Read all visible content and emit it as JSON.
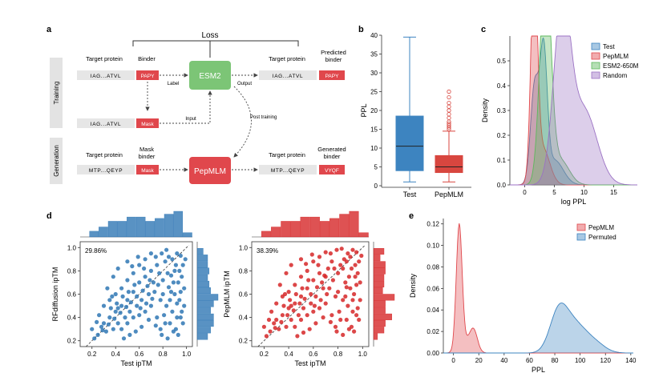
{
  "panel_labels": {
    "a": "a",
    "b": "b",
    "c": "c",
    "d": "d",
    "e": "e"
  },
  "panel_a": {
    "loss_label": "Loss",
    "stage_training": "Training",
    "stage_generation": "Generation",
    "target_protein_label": "Target protein",
    "binder_label": "Binder",
    "predicted_binder_label": "Predicted\nbinder",
    "mask_binder_label": "Mask\nbinder",
    "generated_binder_label": "Generated\nbinder",
    "seq_iag": "IAG...ATVL",
    "seq_mtp": "MTP...QEYP",
    "binder_seq": "PAPY",
    "mask_text": "Mask",
    "generated_seq": "VYQF",
    "model_esm2": "ESM2",
    "model_pepmlm": "PepMLM",
    "arrow_label": "Label",
    "arrow_output": "Output",
    "arrow_input": "Input",
    "arrow_post_training": "Post training",
    "colors": {
      "esm2": "#7cc576",
      "pepmlm": "#e0474c",
      "seq_bg": "#e6e6e6",
      "binder": "#e0474c",
      "stage_bg": "#e3e3e3"
    }
  },
  "chart_data": [
    {
      "panel": "b",
      "type": "box",
      "categories": [
        "Test",
        "PepMLM"
      ],
      "ylabel": "PPL",
      "ylim": [
        0,
        40
      ],
      "yticks": [
        0,
        5,
        10,
        15,
        20,
        25,
        30,
        35,
        40
      ],
      "boxes": [
        {
          "name": "Test",
          "whisker_low": 1,
          "q1": 4,
          "median": 10.5,
          "q3": 18.5,
          "whisker_high": 39.5,
          "outliers": [],
          "color": "#3d84c0"
        },
        {
          "name": "PepMLM",
          "whisker_low": 1,
          "q1": 3.5,
          "median": 5,
          "q3": 8,
          "whisker_high": 14.5,
          "outliers": [
            15,
            15.5,
            16,
            16.5,
            17,
            18,
            19,
            20,
            21,
            22,
            23.5,
            25
          ],
          "color": "#d8463f"
        }
      ]
    },
    {
      "panel": "c",
      "type": "area",
      "xlabel": "log PPL",
      "ylabel": "Density",
      "xlim": [
        -2.5,
        19
      ],
      "ylim": [
        0,
        0.6
      ],
      "xticks": [
        0,
        5,
        10,
        15
      ],
      "yticks": [
        0.0,
        0.1,
        0.2,
        0.3,
        0.4,
        0.5
      ],
      "legend": "top-right",
      "series": [
        {
          "name": "Test",
          "color": "#3d84c0",
          "components": [
            [
              1.7,
              0.7,
              0.4
            ],
            [
              3.2,
              0.6,
              0.5
            ],
            [
              5,
              1.5,
              0.1
            ]
          ]
        },
        {
          "name": "PepMLM",
          "color": "#e0474c",
          "components": [
            [
              1.6,
              0.55,
              0.85
            ],
            [
              3,
              1.2,
              0.15
            ]
          ]
        },
        {
          "name": "ESM2-650M",
          "color": "#5cb85c",
          "components": [
            [
              3.5,
              0.9,
              0.9
            ],
            [
              6,
              1.5,
              0.1
            ]
          ]
        },
        {
          "name": "Random",
          "color": "#9b72c4",
          "components": [
            [
              6.3,
              1.4,
              0.7
            ],
            [
              10,
              2.2,
              0.3
            ]
          ]
        }
      ]
    },
    {
      "panel": "d-left",
      "type": "scatter",
      "xlabel": "Test ipTM",
      "ylabel": "RFdiffusion ipTM",
      "xlim": [
        0.1,
        1.05
      ],
      "ylim": [
        0.15,
        1.05
      ],
      "xticks": [
        0.2,
        0.4,
        0.6,
        0.8,
        1.0
      ],
      "yticks": [
        0.2,
        0.4,
        0.6,
        0.8,
        1.0
      ],
      "annotation": "29.86%",
      "color": "#2f77b4",
      "points": [
        [
          0.85,
          0.92
        ],
        [
          0.92,
          0.95
        ],
        [
          0.88,
          0.9
        ],
        [
          0.91,
          0.85
        ],
        [
          0.95,
          0.93
        ],
        [
          0.82,
          0.88
        ],
        [
          0.9,
          0.8
        ],
        [
          0.87,
          0.76
        ],
        [
          0.93,
          0.7
        ],
        [
          0.8,
          0.72
        ],
        [
          0.85,
          0.66
        ],
        [
          0.9,
          0.6
        ],
        [
          0.94,
          0.55
        ],
        [
          0.83,
          0.5
        ],
        [
          0.88,
          0.45
        ],
        [
          0.92,
          0.4
        ],
        [
          0.86,
          0.35
        ],
        [
          0.91,
          0.3
        ],
        [
          0.95,
          0.62
        ],
        [
          0.8,
          0.6
        ],
        [
          0.75,
          0.85
        ],
        [
          0.7,
          0.8
        ],
        [
          0.72,
          0.7
        ],
        [
          0.65,
          0.75
        ],
        [
          0.68,
          0.6
        ],
        [
          0.6,
          0.7
        ],
        [
          0.62,
          0.55
        ],
        [
          0.55,
          0.62
        ],
        [
          0.58,
          0.5
        ],
        [
          0.5,
          0.55
        ],
        [
          0.52,
          0.45
        ],
        [
          0.45,
          0.5
        ],
        [
          0.48,
          0.4
        ],
        [
          0.4,
          0.45
        ],
        [
          0.42,
          0.35
        ],
        [
          0.35,
          0.4
        ],
        [
          0.38,
          0.3
        ],
        [
          0.3,
          0.35
        ],
        [
          0.32,
          0.28
        ],
        [
          0.25,
          0.25
        ],
        [
          0.22,
          0.22
        ],
        [
          0.28,
          0.32
        ],
        [
          0.35,
          0.55
        ],
        [
          0.4,
          0.6
        ],
        [
          0.45,
          0.65
        ],
        [
          0.5,
          0.72
        ],
        [
          0.55,
          0.78
        ],
        [
          0.6,
          0.85
        ],
        [
          0.65,
          0.9
        ],
        [
          0.7,
          0.95
        ],
        [
          0.3,
          0.5
        ],
        [
          0.33,
          0.65
        ],
        [
          0.38,
          0.75
        ],
        [
          0.42,
          0.82
        ],
        [
          0.5,
          0.88
        ],
        [
          0.45,
          0.3
        ],
        [
          0.5,
          0.35
        ],
        [
          0.55,
          0.4
        ],
        [
          0.6,
          0.42
        ],
        [
          0.65,
          0.45
        ],
        [
          0.7,
          0.5
        ],
        [
          0.75,
          0.4
        ],
        [
          0.78,
          0.55
        ],
        [
          0.73,
          0.62
        ],
        [
          0.68,
          0.38
        ],
        [
          0.62,
          0.32
        ],
        [
          0.57,
          0.28
        ],
        [
          0.52,
          0.25
        ],
        [
          0.47,
          0.22
        ],
        [
          0.42,
          0.48
        ],
        [
          0.36,
          0.48
        ],
        [
          0.26,
          0.42
        ],
        [
          0.24,
          0.36
        ],
        [
          0.2,
          0.3
        ],
        [
          0.96,
          0.75
        ],
        [
          0.97,
          0.85
        ],
        [
          0.98,
          0.65
        ],
        [
          0.96,
          0.45
        ],
        [
          0.97,
          0.35
        ],
        [
          0.93,
          0.25
        ],
        [
          0.89,
          0.28
        ],
        [
          0.84,
          0.22
        ],
        [
          0.78,
          0.3
        ],
        [
          0.81,
          0.42
        ],
        [
          0.77,
          0.78
        ],
        [
          0.74,
          0.92
        ],
        [
          0.79,
          0.95
        ],
        [
          0.83,
          0.98
        ],
        [
          0.67,
          0.67
        ],
        [
          0.63,
          0.63
        ],
        [
          0.58,
          0.58
        ],
        [
          0.53,
          0.53
        ],
        [
          0.49,
          0.49
        ],
        [
          0.44,
          0.44
        ],
        [
          0.39,
          0.39
        ],
        [
          0.34,
          0.34
        ],
        [
          0.29,
          0.29
        ],
        [
          0.71,
          0.56
        ],
        [
          0.66,
          0.52
        ],
        [
          0.61,
          0.48
        ],
        [
          0.56,
          0.68
        ],
        [
          0.51,
          0.62
        ],
        [
          0.46,
          0.58
        ],
        [
          0.41,
          0.52
        ],
        [
          0.37,
          0.58
        ],
        [
          0.54,
          0.84
        ],
        [
          0.59,
          0.92
        ],
        [
          0.64,
          0.82
        ],
        [
          0.69,
          0.72
        ],
        [
          0.76,
          0.68
        ],
        [
          0.86,
          0.55
        ],
        [
          0.89,
          0.7
        ],
        [
          0.94,
          0.8
        ],
        [
          0.99,
          0.9
        ],
        [
          0.98,
          0.5
        ],
        [
          0.95,
          0.4
        ],
        [
          0.92,
          0.52
        ],
        [
          0.87,
          0.62
        ],
        [
          0.84,
          0.78
        ],
        [
          0.82,
          0.35
        ],
        [
          0.79,
          0.25
        ],
        [
          0.74,
          0.33
        ]
      ]
    },
    {
      "panel": "d-right",
      "type": "scatter",
      "xlabel": "Test ipTM",
      "ylabel": "PepMLM ipTM",
      "xlim": [
        0.1,
        1.05
      ],
      "ylim": [
        0.15,
        1.05
      ],
      "xticks": [
        0.2,
        0.4,
        0.6,
        0.8,
        1.0
      ],
      "yticks": [
        0.2,
        0.4,
        0.6,
        0.8,
        1.0
      ],
      "annotation": "38.39%",
      "color": "#d62728",
      "points": [
        [
          0.88,
          0.95
        ],
        [
          0.92,
          0.98
        ],
        [
          0.85,
          0.9
        ],
        [
          0.9,
          0.92
        ],
        [
          0.95,
          0.96
        ],
        [
          0.82,
          0.85
        ],
        [
          0.87,
          0.88
        ],
        [
          0.91,
          0.82
        ],
        [
          0.94,
          0.75
        ],
        [
          0.8,
          0.78
        ],
        [
          0.86,
          0.7
        ],
        [
          0.9,
          0.65
        ],
        [
          0.93,
          0.6
        ],
        [
          0.84,
          0.55
        ],
        [
          0.88,
          0.5
        ],
        [
          0.92,
          0.45
        ],
        [
          0.87,
          0.38
        ],
        [
          0.91,
          0.32
        ],
        [
          0.95,
          0.68
        ],
        [
          0.8,
          0.62
        ],
        [
          0.75,
          0.88
        ],
        [
          0.72,
          0.82
        ],
        [
          0.7,
          0.75
        ],
        [
          0.65,
          0.78
        ],
        [
          0.68,
          0.65
        ],
        [
          0.6,
          0.72
        ],
        [
          0.62,
          0.58
        ],
        [
          0.55,
          0.65
        ],
        [
          0.58,
          0.52
        ],
        [
          0.5,
          0.58
        ],
        [
          0.52,
          0.48
        ],
        [
          0.45,
          0.52
        ],
        [
          0.48,
          0.42
        ],
        [
          0.4,
          0.48
        ],
        [
          0.42,
          0.38
        ],
        [
          0.35,
          0.42
        ],
        [
          0.38,
          0.32
        ],
        [
          0.3,
          0.38
        ],
        [
          0.32,
          0.3
        ],
        [
          0.25,
          0.28
        ],
        [
          0.22,
          0.24
        ],
        [
          0.28,
          0.35
        ],
        [
          0.35,
          0.58
        ],
        [
          0.4,
          0.62
        ],
        [
          0.45,
          0.68
        ],
        [
          0.5,
          0.75
        ],
        [
          0.55,
          0.8
        ],
        [
          0.6,
          0.88
        ],
        [
          0.65,
          0.92
        ],
        [
          0.7,
          0.96
        ],
        [
          0.3,
          0.52
        ],
        [
          0.33,
          0.68
        ],
        [
          0.38,
          0.78
        ],
        [
          0.42,
          0.85
        ],
        [
          0.5,
          0.9
        ],
        [
          0.45,
          0.32
        ],
        [
          0.5,
          0.38
        ],
        [
          0.55,
          0.42
        ],
        [
          0.6,
          0.45
        ],
        [
          0.65,
          0.48
        ],
        [
          0.7,
          0.52
        ],
        [
          0.75,
          0.42
        ],
        [
          0.78,
          0.58
        ],
        [
          0.73,
          0.65
        ],
        [
          0.68,
          0.4
        ],
        [
          0.62,
          0.35
        ],
        [
          0.57,
          0.3
        ],
        [
          0.52,
          0.27
        ],
        [
          0.47,
          0.24
        ],
        [
          0.42,
          0.5
        ],
        [
          0.36,
          0.5
        ],
        [
          0.26,
          0.45
        ],
        [
          0.24,
          0.38
        ],
        [
          0.2,
          0.32
        ],
        [
          0.96,
          0.78
        ],
        [
          0.97,
          0.88
        ],
        [
          0.98,
          0.7
        ],
        [
          0.96,
          0.48
        ],
        [
          0.97,
          0.38
        ],
        [
          0.93,
          0.28
        ],
        [
          0.89,
          0.3
        ],
        [
          0.84,
          0.25
        ],
        [
          0.78,
          0.32
        ],
        [
          0.81,
          0.45
        ],
        [
          0.77,
          0.82
        ],
        [
          0.74,
          0.95
        ],
        [
          0.79,
          0.98
        ],
        [
          0.83,
          0.99
        ],
        [
          0.67,
          0.7
        ],
        [
          0.63,
          0.66
        ],
        [
          0.58,
          0.6
        ],
        [
          0.53,
          0.56
        ],
        [
          0.49,
          0.52
        ],
        [
          0.44,
          0.46
        ],
        [
          0.39,
          0.42
        ],
        [
          0.34,
          0.36
        ],
        [
          0.29,
          0.31
        ],
        [
          0.71,
          0.6
        ],
        [
          0.66,
          0.55
        ],
        [
          0.61,
          0.5
        ],
        [
          0.56,
          0.72
        ],
        [
          0.51,
          0.65
        ],
        [
          0.46,
          0.6
        ],
        [
          0.41,
          0.55
        ],
        [
          0.37,
          0.6
        ],
        [
          0.54,
          0.86
        ],
        [
          0.59,
          0.94
        ],
        [
          0.64,
          0.85
        ],
        [
          0.69,
          0.76
        ],
        [
          0.76,
          0.72
        ],
        [
          0.86,
          0.58
        ],
        [
          0.89,
          0.75
        ],
        [
          0.94,
          0.85
        ],
        [
          0.99,
          0.93
        ],
        [
          0.98,
          0.55
        ],
        [
          0.95,
          0.42
        ],
        [
          0.92,
          0.55
        ],
        [
          0.87,
          0.66
        ],
        [
          0.84,
          0.82
        ],
        [
          0.82,
          0.38
        ],
        [
          0.79,
          0.28
        ],
        [
          0.74,
          0.36
        ]
      ]
    },
    {
      "panel": "e",
      "type": "area",
      "xlabel": "PPL",
      "ylabel": "Density",
      "xlim": [
        -8,
        142
      ],
      "ylim": [
        0,
        0.125
      ],
      "xticks": [
        0,
        20,
        40,
        60,
        80,
        100,
        120,
        140
      ],
      "yticks": [
        0.0,
        0.02,
        0.04,
        0.06,
        0.08,
        0.1,
        0.12
      ],
      "legend": "top-right",
      "series": [
        {
          "name": "PepMLM",
          "color": "#e0474c",
          "components": [
            [
              4.5,
              2.3,
              0.115
            ],
            [
              16,
              3,
              0.018
            ],
            [
              10,
              5,
              0.01
            ]
          ]
        },
        {
          "name": "Permuted",
          "color": "#3d84c0",
          "components": [
            [
              83,
              7,
              0.036
            ],
            [
              96,
              9,
              0.025
            ],
            [
              112,
              8,
              0.008
            ]
          ]
        }
      ]
    }
  ]
}
